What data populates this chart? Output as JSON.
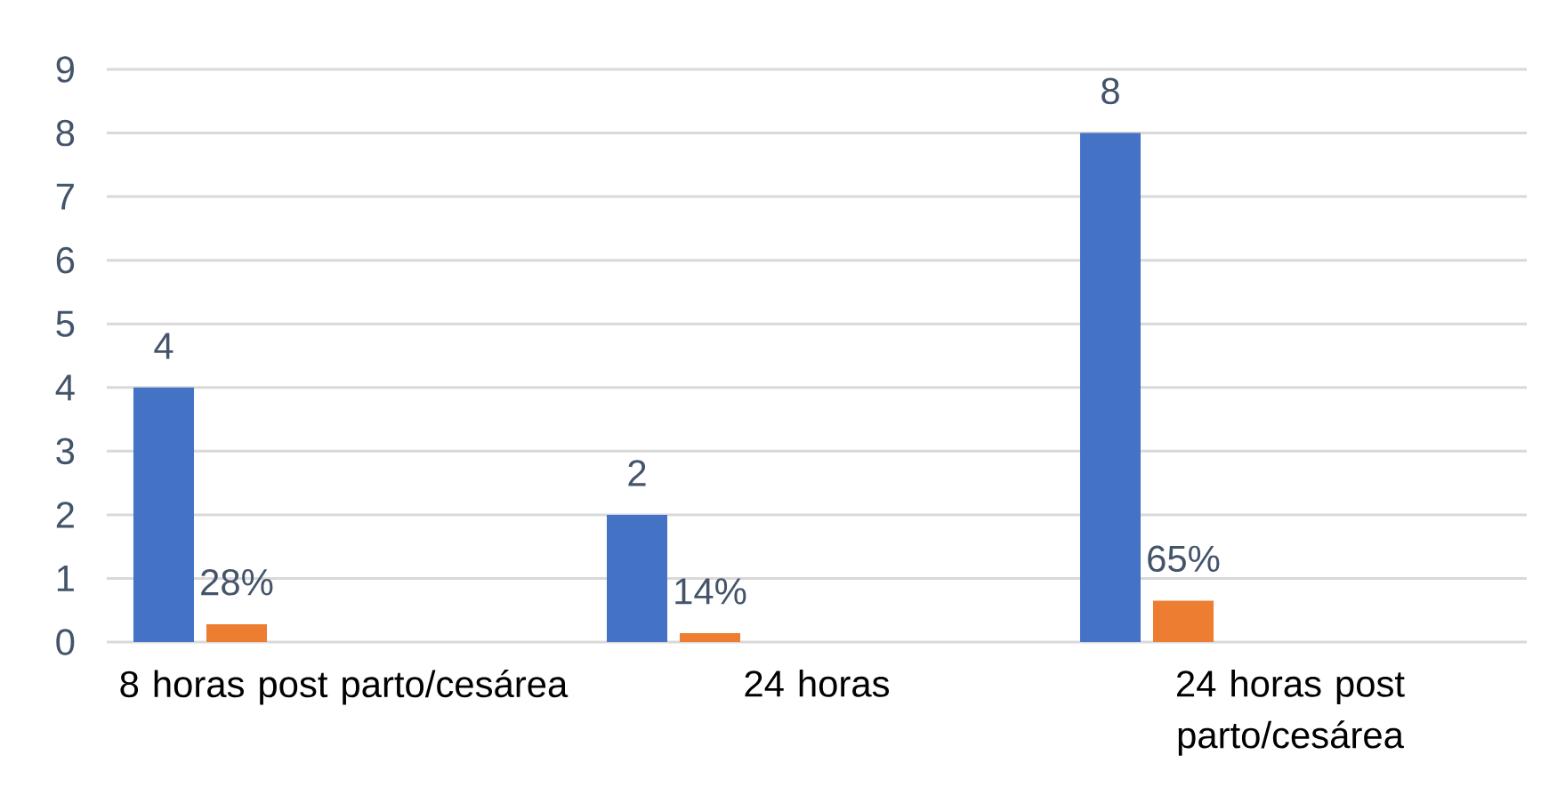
{
  "chart_data": {
    "type": "bar",
    "categories": [
      "8 horas post parto/cesárea",
      "24 horas",
      "24 horas post parto/cesárea"
    ],
    "series": [
      {
        "color": "#4472c4",
        "values": [
          4,
          2,
          8
        ],
        "value_labels": [
          "4",
          "2",
          "8"
        ]
      },
      {
        "color": "#ed7d31",
        "values": [
          0.28,
          0.14,
          0.65
        ],
        "value_labels": [
          "28%",
          "14%",
          "65%"
        ]
      }
    ],
    "ylim": [
      0,
      9
    ],
    "yticks": [
      0,
      1,
      2,
      3,
      4,
      5,
      6,
      7,
      8,
      9
    ],
    "grid": "y"
  }
}
